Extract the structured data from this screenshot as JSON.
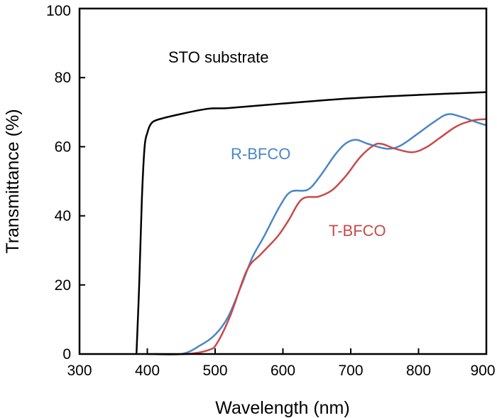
{
  "chart_data": {
    "type": "line",
    "title": "",
    "xlabel": "Wavelength (nm)",
    "ylabel": "Transmittance (%)",
    "xlim": [
      300,
      900
    ],
    "ylim": [
      0,
      100
    ],
    "xticks": [
      "300",
      "400",
      "500",
      "600",
      "700",
      "800",
      "900"
    ],
    "yticks": [
      "0",
      "20",
      "40",
      "60",
      "80",
      "100"
    ],
    "grid": false,
    "series": [
      {
        "name": "STO substrate",
        "color": "#000000",
        "x": [
          384,
          388,
          392,
          396,
          400,
          405,
          415,
          450,
          490,
          520,
          600,
          700,
          800,
          900
        ],
        "y": [
          0,
          20,
          45,
          60,
          64,
          66.5,
          67.8,
          69.5,
          71,
          71.2,
          72.5,
          74,
          75,
          75.8
        ]
      },
      {
        "name": "R-BFCO",
        "color": "#4a86c8",
        "x": [
          400,
          450,
          478,
          500,
          519,
          539,
          555,
          572,
          596,
          612,
          636,
          653,
          677,
          693,
          708,
          726,
          754,
          774,
          799,
          823,
          843,
          864,
          884,
          900
        ],
        "y": [
          0,
          0,
          2.5,
          5.6,
          10.7,
          20,
          28,
          34,
          43,
          47,
          47.5,
          51,
          57.7,
          61,
          62,
          60.8,
          59.4,
          60.4,
          63.8,
          67.2,
          69.4,
          68.6,
          67.2,
          66.2
        ]
      },
      {
        "name": "T-BFCO",
        "color": "#c84a4a",
        "x": [
          410,
          458,
          491,
          503,
          523,
          547,
          568,
          592,
          608,
          628,
          653,
          673,
          693,
          714,
          734,
          746,
          766,
          791,
          811,
          831,
          856,
          880,
          900
        ],
        "y": [
          0,
          0,
          1.2,
          3.2,
          11.4,
          24.3,
          29,
          34,
          38.6,
          44.8,
          45.6,
          47.5,
          51.6,
          57,
          60.4,
          60.8,
          59.4,
          58.4,
          59.8,
          62.5,
          65.9,
          67.6,
          68
        ]
      }
    ],
    "annotations": [
      {
        "text": "STO substrate",
        "color": "#000000"
      },
      {
        "text": "R-BFCO",
        "color": "#4a86c8"
      },
      {
        "text": "T-BFCO",
        "color": "#c84a4a"
      }
    ]
  }
}
